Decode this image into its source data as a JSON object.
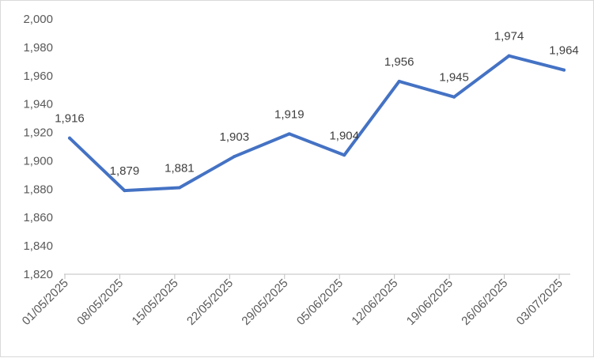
{
  "chart_data": {
    "type": "line",
    "categories": [
      "01/05/2025",
      "08/05/2025",
      "15/05/2025",
      "22/05/2025",
      "29/05/2025",
      "05/06/2025",
      "12/06/2025",
      "19/06/2025",
      "26/06/2025",
      "03/07/2025"
    ],
    "series": [
      {
        "values": [
          1916,
          1879,
          1881,
          1903,
          1919,
          1904,
          1956,
          1945,
          1974,
          1964
        ]
      }
    ],
    "data_labels": [
      "1,916",
      "1,879",
      "1,881",
      "1,903",
      "1,919",
      "1,904",
      "1,956",
      "1,945",
      "1,974",
      "1,964"
    ],
    "ylim": [
      1820,
      2000
    ],
    "y_ticks": [
      "1,820",
      "1,840",
      "1,860",
      "1,880",
      "1,900",
      "1,920",
      "1,940",
      "1,960",
      "1,980",
      "2,000"
    ],
    "grid": false,
    "legend": "none",
    "colors": {
      "line": "#4472c4",
      "axis": "#bfbfbf",
      "text": "#595959"
    }
  }
}
